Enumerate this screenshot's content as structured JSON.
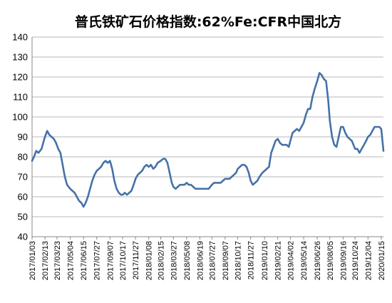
{
  "chart_data": {
    "type": "line",
    "title": "普氏铁矿石价格指数:62%Fe:CFR中国北方",
    "xlabel": "",
    "ylabel": "",
    "ylim": [
      40,
      140
    ],
    "yticks": [
      "40",
      "50",
      "60",
      "70",
      "80",
      "90",
      "100",
      "110",
      "120",
      "130",
      "140"
    ],
    "x_tick_labels": [
      "2017/01/03",
      "2017/02/13",
      "2017/03/23",
      "2017/05/04",
      "2017/06/15",
      "2017/07/27",
      "2017/09/07",
      "2017/10/17",
      "2017/11/27",
      "2018/01/08",
      "2018/02/15",
      "2018/03/27",
      "2018/05/08",
      "2018/06/19",
      "2018/07/27",
      "2018/09/07",
      "2018/10/17",
      "2018/11/27",
      "2019/01/10",
      "2019/02/21",
      "2019/04/02",
      "2019/05/14",
      "2019/06/26",
      "2019/08/05",
      "2019/09/16",
      "2019/10/24",
      "2019/12/04",
      "2020/01/15"
    ],
    "x_range": [
      "2017/01/03",
      "2020/01/22"
    ],
    "grid": true,
    "legend": "none",
    "line_color": "#4572a7",
    "series": [
      {
        "points": [
          [
            "2017/01/03",
            78
          ],
          [
            "2017/01/09",
            80
          ],
          [
            "2017/01/16",
            83
          ],
          [
            "2017/01/23",
            82
          ],
          [
            "2017/02/02",
            84
          ],
          [
            "2017/02/09",
            88
          ],
          [
            "2017/02/13",
            90
          ],
          [
            "2017/02/20",
            93
          ],
          [
            "2017/02/27",
            91
          ],
          [
            "2017/03/06",
            90
          ],
          [
            "2017/03/13",
            89
          ],
          [
            "2017/03/20",
            87
          ],
          [
            "2017/03/27",
            84
          ],
          [
            "2017/04/03",
            82
          ],
          [
            "2017/04/10",
            76
          ],
          [
            "2017/04/17",
            70
          ],
          [
            "2017/04/24",
            66
          ],
          [
            "2017/05/04",
            64
          ],
          [
            "2017/05/11",
            63
          ],
          [
            "2017/05/18",
            62
          ],
          [
            "2017/05/25",
            60
          ],
          [
            "2017/06/01",
            58
          ],
          [
            "2017/06/08",
            57
          ],
          [
            "2017/06/15",
            55
          ],
          [
            "2017/06/22",
            57
          ],
          [
            "2017/06/29",
            60
          ],
          [
            "2017/07/06",
            64
          ],
          [
            "2017/07/13",
            68
          ],
          [
            "2017/07/20",
            71
          ],
          [
            "2017/07/27",
            73
          ],
          [
            "2017/08/03",
            74
          ],
          [
            "2017/08/10",
            75
          ],
          [
            "2017/08/17",
            77
          ],
          [
            "2017/08/24",
            78
          ],
          [
            "2017/08/31",
            77
          ],
          [
            "2017/09/07",
            78
          ],
          [
            "2017/09/14",
            74
          ],
          [
            "2017/09/21",
            68
          ],
          [
            "2017/09/28",
            64
          ],
          [
            "2017/10/05",
            62
          ],
          [
            "2017/10/12",
            61
          ],
          [
            "2017/10/17",
            61
          ],
          [
            "2017/10/24",
            62
          ],
          [
            "2017/10/31",
            61
          ],
          [
            "2017/11/07",
            62
          ],
          [
            "2017/11/14",
            63
          ],
          [
            "2017/11/21",
            66
          ],
          [
            "2017/11/27",
            69
          ],
          [
            "2017/12/04",
            71
          ],
          [
            "2017/12/11",
            72
          ],
          [
            "2017/12/18",
            73
          ],
          [
            "2017/12/25",
            75
          ],
          [
            "2018/01/01",
            76
          ],
          [
            "2018/01/08",
            75
          ],
          [
            "2018/01/15",
            76
          ],
          [
            "2018/01/22",
            74
          ],
          [
            "2018/01/29",
            75
          ],
          [
            "2018/02/05",
            77
          ],
          [
            "2018/02/15",
            78
          ],
          [
            "2018/02/22",
            79
          ],
          [
            "2018/03/01",
            79
          ],
          [
            "2018/03/08",
            77
          ],
          [
            "2018/03/15",
            72
          ],
          [
            "2018/03/22",
            67
          ],
          [
            "2018/03/27",
            65
          ],
          [
            "2018/04/03",
            64
          ],
          [
            "2018/04/10",
            65
          ],
          [
            "2018/04/17",
            66
          ],
          [
            "2018/04/24",
            66
          ],
          [
            "2018/05/01",
            66
          ],
          [
            "2018/05/08",
            67
          ],
          [
            "2018/05/15",
            66
          ],
          [
            "2018/05/22",
            66
          ],
          [
            "2018/05/29",
            65
          ],
          [
            "2018/06/05",
            64
          ],
          [
            "2018/06/12",
            64
          ],
          [
            "2018/06/19",
            64
          ],
          [
            "2018/06/26",
            64
          ],
          [
            "2018/07/03",
            64
          ],
          [
            "2018/07/10",
            64
          ],
          [
            "2018/07/17",
            64
          ],
          [
            "2018/07/27",
            66
          ],
          [
            "2018/08/03",
            67
          ],
          [
            "2018/08/10",
            67
          ],
          [
            "2018/08/17",
            67
          ],
          [
            "2018/08/24",
            67
          ],
          [
            "2018/08/31",
            68
          ],
          [
            "2018/09/07",
            69
          ],
          [
            "2018/09/14",
            69
          ],
          [
            "2018/09/21",
            69
          ],
          [
            "2018/09/28",
            70
          ],
          [
            "2018/10/05",
            71
          ],
          [
            "2018/10/12",
            72
          ],
          [
            "2018/10/17",
            74
          ],
          [
            "2018/10/24",
            75
          ],
          [
            "2018/10/31",
            76
          ],
          [
            "2018/11/07",
            76
          ],
          [
            "2018/11/14",
            75
          ],
          [
            "2018/11/21",
            72
          ],
          [
            "2018/11/27",
            68
          ],
          [
            "2018/12/04",
            66
          ],
          [
            "2018/12/11",
            67
          ],
          [
            "2018/12/18",
            68
          ],
          [
            "2018/12/25",
            70
          ],
          [
            "2019/01/03",
            72
          ],
          [
            "2019/01/10",
            73
          ],
          [
            "2019/01/17",
            74
          ],
          [
            "2019/01/24",
            75
          ],
          [
            "2019/01/31",
            82
          ],
          [
            "2019/02/07",
            85
          ],
          [
            "2019/02/14",
            88
          ],
          [
            "2019/02/21",
            89
          ],
          [
            "2019/02/28",
            87
          ],
          [
            "2019/03/07",
            86
          ],
          [
            "2019/03/14",
            86
          ],
          [
            "2019/03/21",
            86
          ],
          [
            "2019/03/28",
            85
          ],
          [
            "2019/04/02",
            88
          ],
          [
            "2019/04/09",
            92
          ],
          [
            "2019/04/16",
            93
          ],
          [
            "2019/04/23",
            94
          ],
          [
            "2019/04/30",
            93
          ],
          [
            "2019/05/07",
            95
          ],
          [
            "2019/05/14",
            97
          ],
          [
            "2019/05/21",
            101
          ],
          [
            "2019/05/28",
            104
          ],
          [
            "2019/06/04",
            104
          ],
          [
            "2019/06/11",
            110
          ],
          [
            "2019/06/18",
            114
          ],
          [
            "2019/06/26",
            118
          ],
          [
            "2019/07/03",
            122
          ],
          [
            "2019/07/10",
            121
          ],
          [
            "2019/07/17",
            119
          ],
          [
            "2019/07/24",
            118
          ],
          [
            "2019/07/31",
            108
          ],
          [
            "2019/08/05",
            98
          ],
          [
            "2019/08/12",
            90
          ],
          [
            "2019/08/19",
            86
          ],
          [
            "2019/08/26",
            85
          ],
          [
            "2019/09/02",
            90
          ],
          [
            "2019/09/09",
            95
          ],
          [
            "2019/09/16",
            95
          ],
          [
            "2019/09/23",
            92
          ],
          [
            "2019/09/30",
            90
          ],
          [
            "2019/10/07",
            89
          ],
          [
            "2019/10/14",
            88
          ],
          [
            "2019/10/24",
            84
          ],
          [
            "2019/10/31",
            84
          ],
          [
            "2019/11/07",
            82
          ],
          [
            "2019/11/14",
            84
          ],
          [
            "2019/11/21",
            86
          ],
          [
            "2019/11/28",
            88
          ],
          [
            "2019/12/04",
            90
          ],
          [
            "2019/12/11",
            91
          ],
          [
            "2019/12/18",
            93
          ],
          [
            "2019/12/25",
            95
          ],
          [
            "2020/01/02",
            95
          ],
          [
            "2020/01/09",
            95
          ],
          [
            "2020/01/15",
            94
          ],
          [
            "2020/01/22",
            83
          ]
        ]
      }
    ]
  }
}
